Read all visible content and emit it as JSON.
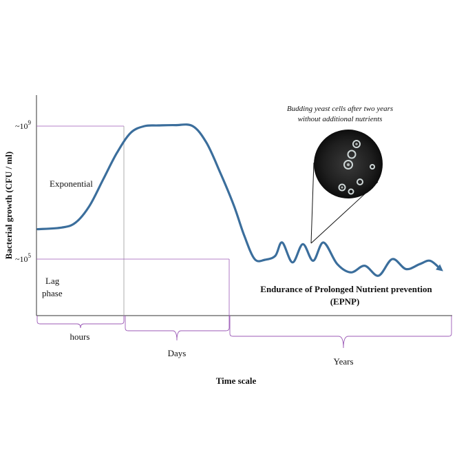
{
  "chart_data": {
    "type": "line",
    "title": "",
    "xlabel": "Time scale",
    "ylabel": "Bacterial growth (CFU / ml)",
    "y_ticks": [
      {
        "base": "~10",
        "exp": "9"
      },
      {
        "base": "~10",
        "exp": "5"
      }
    ],
    "time_spans": [
      "hours",
      "Days",
      "Years"
    ],
    "phase_labels": {
      "lag_line1": "Lag",
      "lag_line2": "phase",
      "exponential": "Exponential"
    },
    "annotations": {
      "yeast_line1": "Budding yeast cells after two years",
      "yeast_line2": "without additional nutrients",
      "epnp_line1": "Endurance of Prolonged Nutrient prevention",
      "epnp_line2": "(EPNP)"
    },
    "series": [
      {
        "values_log10": [
          [
            0.0,
            5.9
          ],
          [
            0.35,
            5.95
          ],
          [
            0.55,
            6.1
          ],
          [
            0.75,
            6.6
          ],
          [
            0.95,
            7.4
          ],
          [
            1.15,
            8.2
          ],
          [
            1.35,
            8.8
          ],
          [
            1.55,
            9.0
          ],
          [
            1.75,
            9.02
          ],
          [
            2.0,
            9.03
          ],
          [
            2.25,
            9.0
          ],
          [
            2.45,
            8.5
          ],
          [
            2.65,
            7.6
          ],
          [
            2.85,
            6.6
          ],
          [
            3.0,
            5.7
          ],
          [
            3.15,
            5.0
          ],
          [
            3.3,
            4.98
          ],
          [
            3.45,
            5.1
          ],
          [
            3.55,
            5.5
          ],
          [
            3.7,
            4.9
          ],
          [
            3.85,
            5.45
          ],
          [
            4.0,
            4.95
          ],
          [
            4.15,
            5.5
          ],
          [
            4.35,
            4.85
          ],
          [
            4.55,
            4.6
          ],
          [
            4.75,
            4.8
          ],
          [
            4.95,
            4.5
          ],
          [
            5.15,
            5.0
          ],
          [
            5.35,
            4.7
          ],
          [
            5.55,
            4.85
          ],
          [
            5.7,
            4.95
          ],
          [
            5.85,
            4.7
          ]
        ]
      }
    ],
    "colors": {
      "curve": "#3b6e9c",
      "guides": "#9b59b6",
      "axis": "#333333"
    }
  }
}
